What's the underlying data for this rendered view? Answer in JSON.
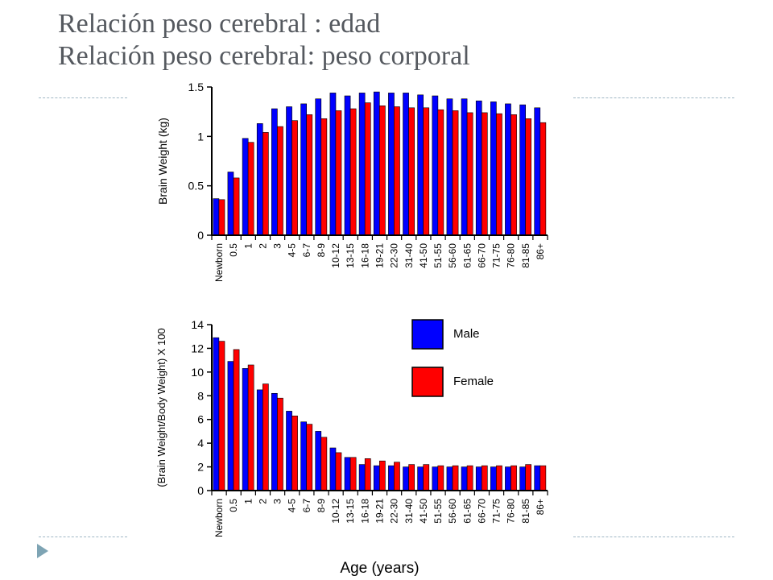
{
  "slide": {
    "title_line1": "Relación peso cerebral : edad",
    "title_line2": "Relación peso cerebral: peso corporal"
  },
  "colors": {
    "male": "#0000ff",
    "female": "#ff0000",
    "axis": "#000000"
  },
  "chart_data": [
    {
      "type": "bar",
      "title": "",
      "xlabel": "",
      "ylabel": "Brain Weight (kg)",
      "ylim": [
        0,
        1.5
      ],
      "yticks": [
        0,
        0.5,
        1,
        1.5
      ],
      "ytick_labels": [
        "0",
        "0.5",
        "1",
        "1.5"
      ],
      "categories": [
        "Newborn",
        "0.5",
        "1",
        "2",
        "3",
        "4-5",
        "6-7",
        "8-9",
        "10-12",
        "13-15",
        "16-18",
        "19-21",
        "22-30",
        "31-40",
        "41-50",
        "51-55",
        "56-60",
        "61-65",
        "66-70",
        "71-75",
        "76-80",
        "81-85",
        "86+"
      ],
      "series": [
        {
          "name": "Male",
          "color": "#0000ff",
          "values": [
            0.37,
            0.64,
            0.98,
            1.13,
            1.28,
            1.3,
            1.33,
            1.38,
            1.44,
            1.41,
            1.44,
            1.45,
            1.44,
            1.44,
            1.42,
            1.41,
            1.38,
            1.38,
            1.36,
            1.35,
            1.33,
            1.32,
            1.29
          ]
        },
        {
          "name": "Female",
          "color": "#ff0000",
          "values": [
            0.36,
            0.58,
            0.94,
            1.04,
            1.1,
            1.16,
            1.22,
            1.18,
            1.26,
            1.28,
            1.34,
            1.31,
            1.3,
            1.29,
            1.29,
            1.27,
            1.26,
            1.24,
            1.24,
            1.23,
            1.22,
            1.18,
            1.14
          ]
        }
      ]
    },
    {
      "type": "bar",
      "title": "",
      "xlabel": "Age (years)",
      "ylabel": "(Brain Weight/Body Weight) X 100",
      "ylim": [
        0,
        14
      ],
      "yticks": [
        0,
        2,
        4,
        6,
        8,
        10,
        12,
        14
      ],
      "ytick_labels": [
        "0",
        "2",
        "4",
        "6",
        "8",
        "10",
        "12",
        "14"
      ],
      "legend": {
        "placement": "upper-right",
        "entries": [
          "Male",
          "Female"
        ]
      },
      "categories": [
        "Newborn",
        "0.5",
        "1",
        "2",
        "3",
        "4-5",
        "6-7",
        "8-9",
        "10-12",
        "13-15",
        "16-18",
        "19-21",
        "22-30",
        "31-40",
        "41-50",
        "51-55",
        "56-60",
        "61-65",
        "66-70",
        "71-75",
        "76-80",
        "81-85",
        "86+"
      ],
      "series": [
        {
          "name": "Male",
          "color": "#0000ff",
          "values": [
            12.9,
            10.9,
            10.3,
            8.5,
            8.2,
            6.7,
            5.8,
            5.0,
            3.6,
            2.8,
            2.2,
            2.1,
            2.1,
            2.0,
            2.0,
            2.0,
            2.0,
            2.0,
            2.0,
            2.0,
            2.0,
            2.0,
            2.1
          ]
        },
        {
          "name": "Female",
          "color": "#ff0000",
          "values": [
            12.6,
            11.9,
            10.6,
            9.0,
            7.8,
            6.3,
            5.6,
            4.5,
            3.2,
            2.8,
            2.7,
            2.5,
            2.4,
            2.2,
            2.2,
            2.1,
            2.1,
            2.1,
            2.1,
            2.1,
            2.1,
            2.2,
            2.1
          ]
        }
      ]
    }
  ]
}
